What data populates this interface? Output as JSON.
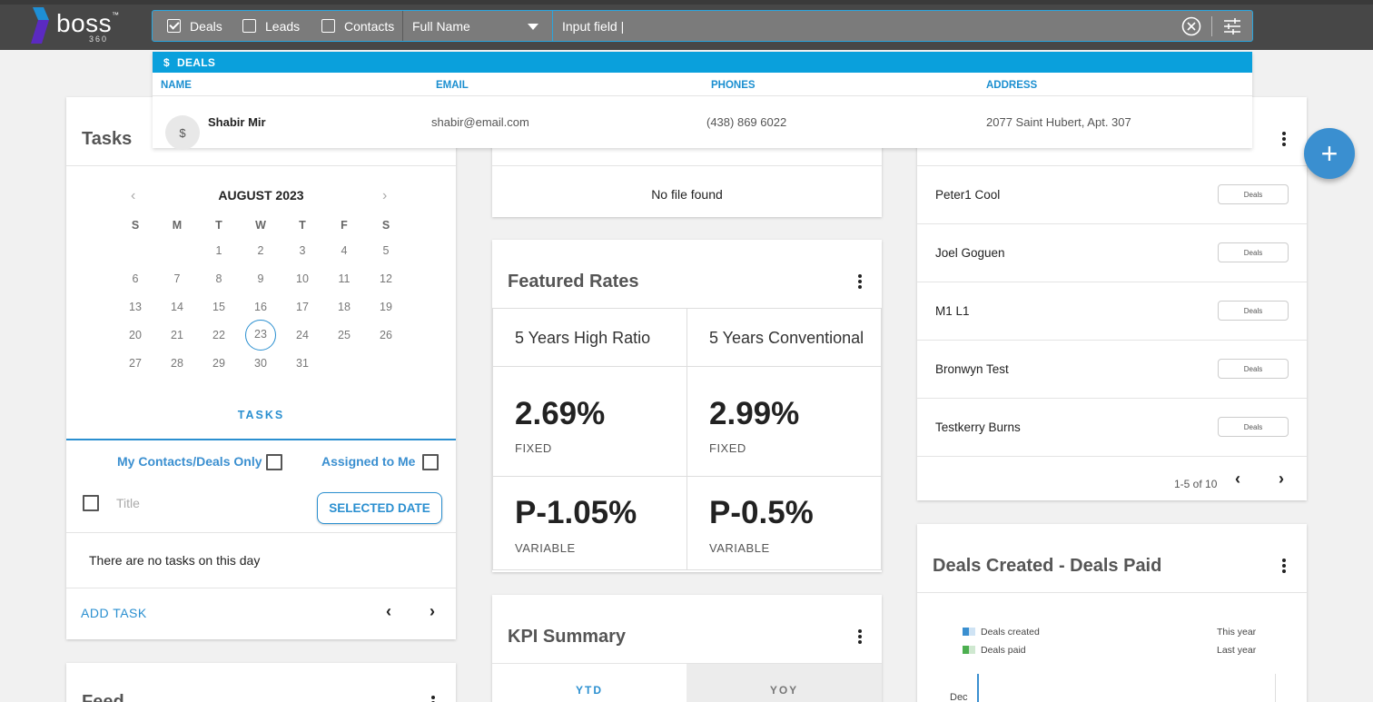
{
  "app": {
    "logo_text": "boss",
    "logo_tm": "™",
    "logo_sub": "360"
  },
  "search": {
    "filters": [
      {
        "label": "Deals",
        "checked": true
      },
      {
        "label": "Leads",
        "checked": false
      },
      {
        "label": "Contacts",
        "checked": false
      }
    ],
    "field_select": "Full Name",
    "input_placeholder": "Input field |",
    "input_value": ""
  },
  "results": {
    "section": "DEALS",
    "section_icon": "$",
    "columns": {
      "name": "NAME",
      "email": "EMAIL",
      "phones": "PHONES",
      "address": "ADDRESS"
    },
    "rows": [
      {
        "avatar": "$",
        "name": "Shabir Mir",
        "email": "shabir@email.com",
        "phone": "(438) 869 6022",
        "address": "2077 Saint Hubert, Apt. 307"
      }
    ]
  },
  "tasks": {
    "title": "Tasks",
    "month": "AUGUST 2023",
    "prev": "‹",
    "next": "›",
    "weekdays": [
      "S",
      "M",
      "T",
      "W",
      "T",
      "F",
      "S"
    ],
    "weeks": [
      [
        "",
        "",
        "1",
        "2",
        "3",
        "4",
        "5"
      ],
      [
        "6",
        "7",
        "8",
        "9",
        "10",
        "11",
        "12"
      ],
      [
        "13",
        "14",
        "15",
        "16",
        "17",
        "18",
        "19"
      ],
      [
        "20",
        "21",
        "22",
        "23",
        "24",
        "25",
        "26"
      ],
      [
        "27",
        "28",
        "29",
        "30",
        "31",
        "",
        ""
      ]
    ],
    "selected_day": "23",
    "tab_label": "TASKS",
    "my_contacts_label": "My Contacts/Deals Only",
    "assigned_label": "Assigned to Me",
    "title_placeholder": "Title",
    "selected_date_button": "SELECTED DATE",
    "empty_text": "There are no tasks on this day",
    "add_task": "ADD TASK",
    "pager_prev": "‹",
    "pager_next": "›"
  },
  "feed": {
    "title": "Feed"
  },
  "files": {
    "empty_text": "No file found"
  },
  "rates": {
    "title": "Featured Rates",
    "columns": [
      "5 Years High Ratio",
      "5 Years Conventional"
    ],
    "fixed": [
      {
        "value": "2.69%",
        "label": "FIXED"
      },
      {
        "value": "2.99%",
        "label": "FIXED"
      }
    ],
    "variable": [
      {
        "value": "P-1.05%",
        "label": "VARIABLE"
      },
      {
        "value": "P-0.5%",
        "label": "VARIABLE"
      }
    ]
  },
  "kpi": {
    "title": "KPI Summary",
    "tabs": [
      "YTD",
      "YOY"
    ]
  },
  "deals_list": {
    "items": [
      {
        "name": "Peter1 Cool",
        "chip": "Deals"
      },
      {
        "name": "Joel Goguen",
        "chip": "Deals"
      },
      {
        "name": "M1 L1",
        "chip": "Deals"
      },
      {
        "name": "Bronwyn Test",
        "chip": "Deals"
      },
      {
        "name": "Testkerry Burns",
        "chip": "Deals"
      }
    ],
    "pager": "1-5 of 10",
    "prev": "‹",
    "next": "›"
  },
  "deals_chart": {
    "title": "Deals Created - Deals Paid",
    "legend": [
      "Deals created",
      "Deals paid"
    ],
    "period": [
      "This year",
      "Last year"
    ],
    "first_category": "Dec"
  },
  "fab": "+",
  "colors": {
    "accent": "#2a8fd0",
    "header": "#0aa0dc",
    "topbar": "#474747"
  }
}
